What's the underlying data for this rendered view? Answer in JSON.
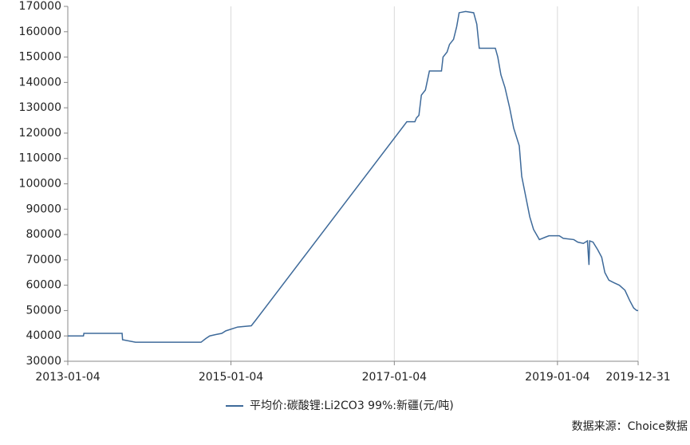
{
  "chart_data": {
    "type": "line",
    "x": [
      "2013-01-04",
      "2013-03-15",
      "2013-03-17",
      "2013-09-04",
      "2013-09-06",
      "2013-11-03",
      "2014-08-23",
      "2014-09-14",
      "2014-10-01",
      "2014-10-26",
      "2014-11-24",
      "2014-12-12",
      "2015-02-03",
      "2015-04-05",
      "2015-04-23",
      "2017-03-01",
      "2017-04-06",
      "2017-04-13",
      "2017-04-24",
      "2017-05-05",
      "2017-05-23",
      "2017-06-10",
      "2017-08-03",
      "2017-08-10",
      "2017-08-28",
      "2017-09-08",
      "2017-09-26",
      "2017-10-10",
      "2017-10-21",
      "2017-11-19",
      "2017-12-25",
      "2018-01-08",
      "2018-01-19",
      "2018-04-01",
      "2018-04-12",
      "2018-04-26",
      "2018-05-14",
      "2018-06-04",
      "2018-06-22",
      "2018-07-17",
      "2018-07-28",
      "2018-08-15",
      "2018-09-02",
      "2018-09-19",
      "2018-10-15",
      "2018-11-12",
      "2018-11-27",
      "2019-01-12",
      "2019-01-30",
      "2019-03-18",
      "2019-04-05",
      "2019-04-30",
      "2019-05-18",
      "2019-05-25",
      "2019-05-28",
      "2019-06-12",
      "2019-07-03",
      "2019-07-21",
      "2019-08-04",
      "2019-08-22",
      "2019-09-13",
      "2019-10-08",
      "2019-11-02",
      "2019-11-23",
      "2019-12-11",
      "2019-12-25",
      "2019-12-31"
    ],
    "series": [
      {
        "name": "平均价:碳酸锂:Li2CO3 99%:新疆(元/吨)",
        "color": "#3e6a9a",
        "values": [
          40000,
          40000,
          41000,
          41000,
          38500,
          37500,
          37500,
          39000,
          40000,
          40500,
          41000,
          42000,
          43500,
          44000,
          46000,
          124500,
          124500,
          126000,
          127000,
          135000,
          137000,
          144500,
          144500,
          150000,
          152000,
          155000,
          157000,
          162000,
          167500,
          168000,
          167500,
          163000,
          153500,
          153500,
          150000,
          143000,
          138000,
          130000,
          122000,
          115000,
          103000,
          95000,
          87000,
          82000,
          78000,
          79000,
          79500,
          79500,
          78500,
          78000,
          77000,
          76500,
          77500,
          68000,
          77500,
          77000,
          74000,
          71000,
          65000,
          62000,
          61000,
          60000,
          58000,
          54000,
          51000,
          50000,
          50000
        ]
      }
    ],
    "xlim": [
      "2013-01-04",
      "2019-12-31"
    ],
    "xticks": [
      "2013-01-04",
      "2015-01-04",
      "2017-01-04",
      "2019-01-04",
      "2019-12-31"
    ],
    "ylim": [
      30000,
      170000
    ],
    "yticks": [
      30000,
      40000,
      50000,
      60000,
      70000,
      80000,
      90000,
      100000,
      110000,
      120000,
      130000,
      140000,
      150000,
      160000,
      170000
    ],
    "grid": "x",
    "source": "数据来源：Choice数据"
  }
}
